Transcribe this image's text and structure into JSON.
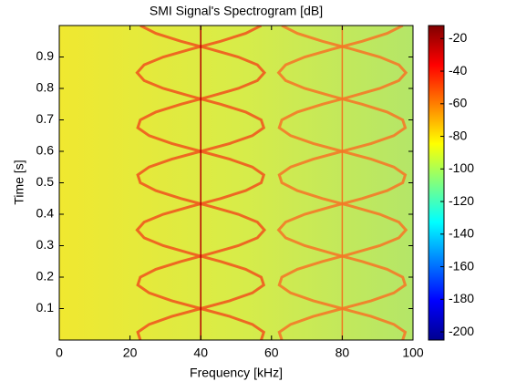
{
  "chart_data": {
    "type": "spectrogram",
    "title": "SMI Signal's Spectrogram [dB]",
    "xlabel": "Frequency [kHz]",
    "ylabel": "Time [s]",
    "xlim": [
      0,
      100
    ],
    "xticks": [
      0,
      20,
      40,
      60,
      80,
      100
    ],
    "ylim": [
      0,
      1
    ],
    "yticks": [
      0.1,
      0.2,
      0.3,
      0.4,
      0.5,
      0.6,
      0.7,
      0.8,
      0.9
    ],
    "colormap": "jet",
    "clim": [
      -205,
      -12
    ],
    "cticks": [
      -20,
      -40,
      -60,
      -80,
      -100,
      -120,
      -140,
      -160,
      -180,
      -200
    ],
    "y": [
      0,
      0.025,
      0.05,
      0.075,
      0.1,
      0.125,
      0.15,
      0.175,
      0.2,
      0.225,
      0.25,
      0.275,
      0.3,
      0.325,
      0.35,
      0.375,
      0.4,
      0.425,
      0.45,
      0.475,
      0.5,
      0.525,
      0.55,
      0.575,
      0.6,
      0.625,
      0.65,
      0.675,
      0.7,
      0.725,
      0.75,
      0.775,
      0.8,
      0.825,
      0.85,
      0.875,
      0.9,
      0.925,
      0.95,
      0.975,
      1
    ],
    "series": [
      {
        "color": "#f05a1e",
        "values": [
          22.9,
          22.2,
          25.4,
          31.8,
          40,
          48.2,
          54.6,
          57.8,
          57.1,
          52.7,
          45.6,
          37.2,
          29.4,
          24.0,
          22,
          24.0,
          29.4,
          37.2,
          45.6,
          52.7,
          57.1,
          57.8,
          54.6,
          48.2,
          40,
          31.8,
          25.4,
          22.2,
          22.9,
          27.3,
          34.4,
          42.8,
          50.6,
          56.0,
          58,
          56.0,
          50.6,
          42.8,
          34.4,
          27.3,
          22.9
        ]
      },
      {
        "color": "#f05a1e",
        "values": [
          57.1,
          57.8,
          54.6,
          48.2,
          40,
          31.8,
          25.4,
          22.2,
          22.9,
          27.3,
          34.4,
          42.8,
          50.6,
          56.0,
          58,
          56.0,
          50.6,
          42.8,
          34.4,
          27.3,
          22.9,
          22.2,
          25.4,
          31.8,
          40,
          48.2,
          54.6,
          57.8,
          57.1,
          52.7,
          45.6,
          37.2,
          29.4,
          24.0,
          22,
          24.0,
          29.4,
          37.2,
          45.6,
          52.7,
          57.1
        ]
      },
      {
        "color": "#f47a28",
        "values": [
          62.9,
          62.2,
          65.4,
          71.8,
          80,
          88.2,
          94.6,
          97.8,
          97.1,
          92.7,
          85.6,
          77.2,
          69.4,
          64.0,
          62,
          64.0,
          69.4,
          77.2,
          85.6,
          92.7,
          97.1,
          97.8,
          94.6,
          88.2,
          80,
          71.8,
          65.4,
          62.2,
          62.9,
          67.3,
          74.4,
          82.8,
          90.6,
          96.0,
          98,
          96.0,
          90.6,
          82.8,
          74.4,
          67.3,
          62.9
        ]
      },
      {
        "color": "#f47a28",
        "values": [
          97.1,
          97.8,
          94.6,
          88.2,
          80,
          71.8,
          65.4,
          62.2,
          62.9,
          67.3,
          74.4,
          82.8,
          90.6,
          96.0,
          98,
          96.0,
          90.6,
          82.8,
          74.4,
          67.3,
          62.9,
          62.2,
          65.4,
          71.8,
          80,
          88.2,
          94.6,
          97.8,
          97.1,
          92.7,
          85.6,
          77.2,
          69.4,
          64.0,
          62,
          64.0,
          69.4,
          77.2,
          85.6,
          92.7,
          97.1
        ]
      }
    ],
    "vlines": [
      {
        "value": 40,
        "color": "#b40000"
      },
      {
        "value": 80,
        "color": "#f07820"
      }
    ]
  }
}
